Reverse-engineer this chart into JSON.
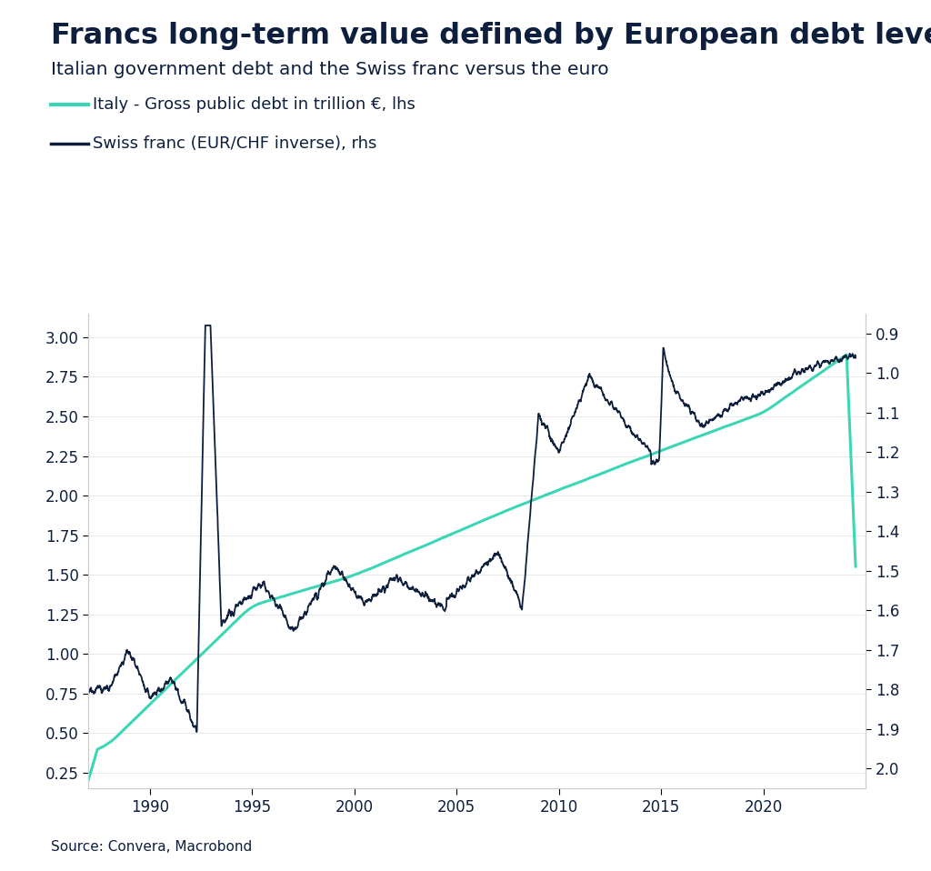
{
  "title": "Francs long-term value defined by European debt levels?",
  "subtitle": "Italian government debt and the Swiss franc versus the euro",
  "legend1": "Italy - Gross public debt in trillion €, lhs",
  "legend2": "Swiss franc (EUR/CHF inverse), rhs",
  "source": "Source: Convera, Macrobond",
  "title_color": "#0d1f3c",
  "subtitle_color": "#0d1f3c",
  "italy_color": "#3dd6b5",
  "chf_color": "#0d1f3c",
  "background_color": "#ffffff",
  "lhs_ylim": [
    0.15,
    3.15
  ],
  "lhs_yticks": [
    0.25,
    0.5,
    0.75,
    1.0,
    1.25,
    1.5,
    1.75,
    2.0,
    2.25,
    2.5,
    2.75,
    3.0
  ],
  "rhs_ylim": [
    2.05,
    0.85
  ],
  "rhs_yticks": [
    2.0,
    1.9,
    1.8,
    1.7,
    1.6,
    1.5,
    1.4,
    1.3,
    1.2,
    1.1,
    1.0,
    0.9
  ],
  "xmin": 1987.0,
  "xmax": 2025.0,
  "xticks": [
    1990,
    1995,
    2000,
    2005,
    2010,
    2015,
    2020
  ]
}
